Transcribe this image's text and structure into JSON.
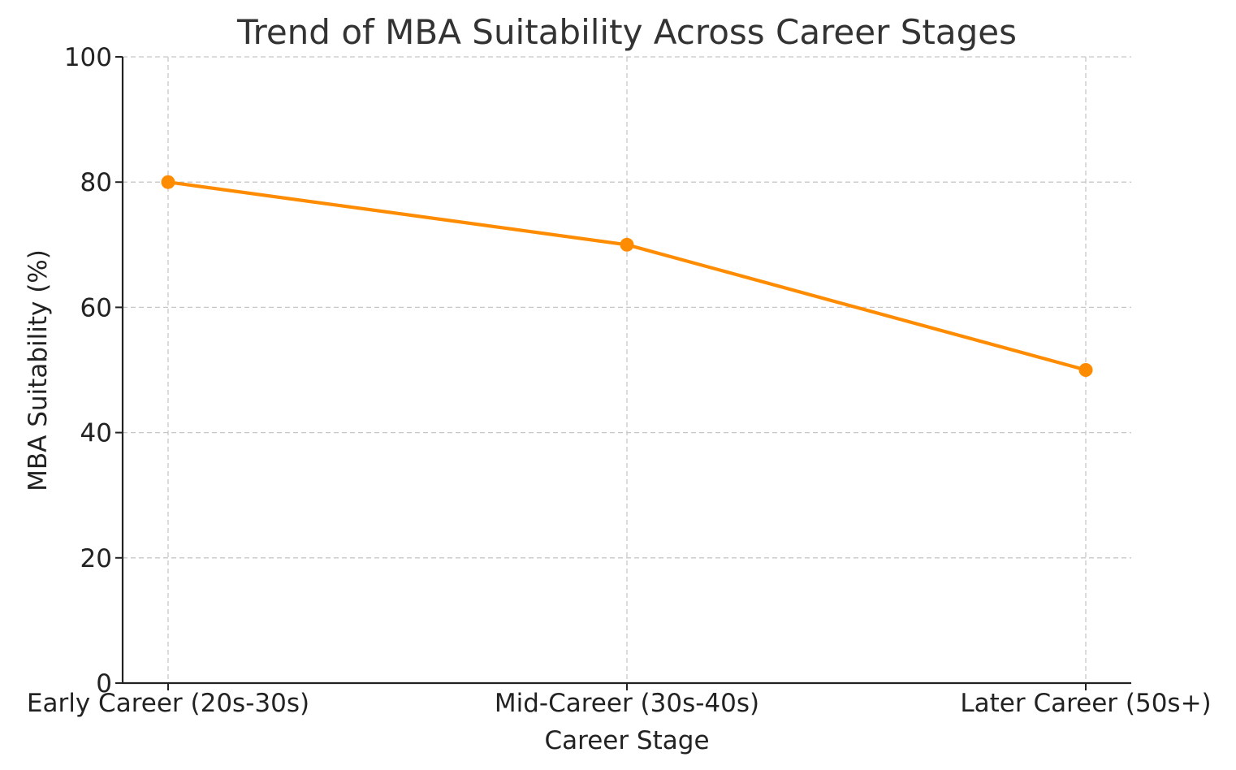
{
  "chart_data": {
    "type": "line",
    "title": "Trend of MBA Suitability Across Career Stages",
    "xlabel": "Career Stage",
    "ylabel": "MBA Suitability (%)",
    "categories": [
      "Early Career (20s-30s)",
      "Mid-Career (30s-40s)",
      "Later Career (50s+)"
    ],
    "series": [
      {
        "name": "MBA Suitability",
        "values": [
          80,
          70,
          50
        ],
        "color": "#ff8c00",
        "marker": "circle"
      }
    ],
    "ylim": [
      0,
      100
    ],
    "yticks": [
      0,
      20,
      40,
      60,
      80,
      100
    ],
    "grid": true
  }
}
